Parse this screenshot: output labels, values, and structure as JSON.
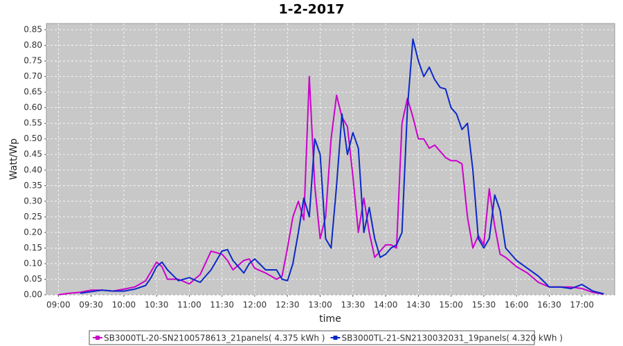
{
  "chart_data": {
    "type": "line",
    "title": "1-2-2017",
    "x_label": "time",
    "y_label": "Watt/Wp",
    "x": [
      "09:00",
      "09:10",
      "09:20",
      "09:30",
      "09:40",
      "09:50",
      "10:00",
      "10:10",
      "10:20",
      "10:25",
      "10:30",
      "10:35",
      "10:40",
      "10:50",
      "11:00",
      "11:10",
      "11:20",
      "11:30",
      "11:35",
      "11:40",
      "11:50",
      "11:55",
      "12:00",
      "12:10",
      "12:20",
      "12:25",
      "12:30",
      "12:35",
      "12:40",
      "12:45",
      "12:50",
      "12:55",
      "13:00",
      "13:05",
      "13:10",
      "13:15",
      "13:20",
      "13:25",
      "13:30",
      "13:35",
      "13:40",
      "13:45",
      "13:50",
      "13:55",
      "14:00",
      "14:05",
      "14:10",
      "14:15",
      "14:20",
      "14:25",
      "14:30",
      "14:35",
      "14:40",
      "14:45",
      "14:50",
      "14:55",
      "15:00",
      "15:05",
      "15:10",
      "15:15",
      "15:20",
      "15:25",
      "15:30",
      "15:35",
      "15:40",
      "15:45",
      "15:50",
      "16:00",
      "16:10",
      "16:20",
      "16:30",
      "16:40",
      "16:50",
      "17:00",
      "17:10",
      "17:20"
    ],
    "series": [
      {
        "name": "SB3000TL-20-SN2100578613_21panels( 4.375 kWh )",
        "color": "#cc00cc",
        "values": [
          0.0,
          0.005,
          0.008,
          0.015,
          0.015,
          0.012,
          0.018,
          0.025,
          0.045,
          0.075,
          0.105,
          0.09,
          0.05,
          0.05,
          0.035,
          0.065,
          0.14,
          0.13,
          0.11,
          0.08,
          0.11,
          0.115,
          0.085,
          0.07,
          0.05,
          0.06,
          0.15,
          0.25,
          0.3,
          0.24,
          0.7,
          0.35,
          0.18,
          0.25,
          0.5,
          0.64,
          0.57,
          0.54,
          0.38,
          0.2,
          0.31,
          0.2,
          0.12,
          0.14,
          0.16,
          0.16,
          0.15,
          0.55,
          0.63,
          0.57,
          0.5,
          0.5,
          0.47,
          0.48,
          0.46,
          0.44,
          0.43,
          0.43,
          0.42,
          0.25,
          0.15,
          0.19,
          0.16,
          0.34,
          0.22,
          0.13,
          0.12,
          0.09,
          0.07,
          0.04,
          0.025,
          0.025,
          0.025,
          0.02,
          0.008,
          0.002
        ]
      },
      {
        "name": "SB3000TL-21-SN2130032031_19panels( 4.320 kWh )",
        "color": "#0a28c8",
        "values": [
          null,
          null,
          0.005,
          0.01,
          0.015,
          0.012,
          0.012,
          0.018,
          0.03,
          0.055,
          0.09,
          0.105,
          0.08,
          0.045,
          0.055,
          0.04,
          0.08,
          0.14,
          0.145,
          0.11,
          0.07,
          0.1,
          0.115,
          0.08,
          0.08,
          0.05,
          0.045,
          0.1,
          0.2,
          0.31,
          0.25,
          0.5,
          0.45,
          0.18,
          0.15,
          0.35,
          0.58,
          0.45,
          0.52,
          0.47,
          0.2,
          0.28,
          0.18,
          0.12,
          0.13,
          0.15,
          0.16,
          0.2,
          0.6,
          0.82,
          0.75,
          0.7,
          0.73,
          0.69,
          0.665,
          0.66,
          0.6,
          0.58,
          0.53,
          0.55,
          0.4,
          0.18,
          0.15,
          0.18,
          0.32,
          0.27,
          0.15,
          0.11,
          0.085,
          0.06,
          0.025,
          0.025,
          0.02,
          0.033,
          0.012,
          0.003
        ]
      }
    ],
    "xlim": [
      "08:49",
      "17:30"
    ],
    "xticks": [
      "09:00",
      "09:30",
      "10:00",
      "10:30",
      "11:00",
      "11:30",
      "12:00",
      "12:30",
      "13:00",
      "13:30",
      "14:00",
      "14:30",
      "15:00",
      "15:30",
      "16:00",
      "16:30",
      "17:00"
    ],
    "ylim": [
      0,
      0.87
    ],
    "yticks": [
      {
        "value": 0,
        "label": "0.00"
      },
      0.05,
      {
        "value": 0.1,
        "label": "0.10"
      },
      0.15,
      {
        "value": 0.2,
        "label": "0.20"
      },
      0.25,
      {
        "value": 0.3,
        "label": "0.30"
      },
      0.35,
      {
        "value": 0.4,
        "label": "0.40"
      },
      0.45,
      {
        "value": 0.5,
        "label": "0.50"
      },
      0.55,
      {
        "value": 0.6,
        "label": "0.60"
      },
      0.65,
      {
        "value": 0.7,
        "label": "0.70"
      },
      0.75,
      {
        "value": 0.8,
        "label": "0.80"
      },
      0.85
    ],
    "grid": true,
    "legend": "bottom"
  }
}
